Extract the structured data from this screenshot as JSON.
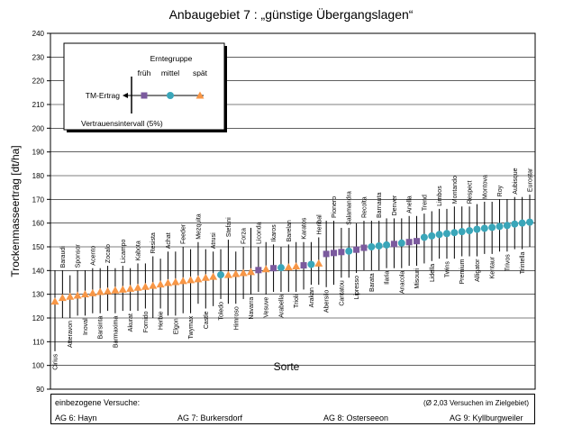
{
  "chart_data": {
    "type": "scatter",
    "title": "Anbaugebiet 7 : „günstige Übergangslagen“",
    "ylabel": "Trockenmasseertrag [dt/ha]",
    "xlabel": "Sorte",
    "ylim": [
      90,
      240
    ],
    "yticks": [
      90,
      100,
      110,
      120,
      130,
      140,
      150,
      160,
      170,
      180,
      190,
      200,
      210,
      220,
      230,
      240
    ],
    "grid": "horizontal",
    "groups": {
      "fruh": "früh",
      "mittel": "mittel",
      "spat": "spät"
    },
    "colors": {
      "fruh": "#7b5a9e",
      "mittel": "#3aa6b9",
      "spat": "#f79646"
    },
    "points": [
      {
        "name": "Cirius",
        "group": "spat",
        "y": 127,
        "low": 106,
        "high": 140
      },
      {
        "name": "Baraudi",
        "group": "spat",
        "y": 128.5,
        "low": 120,
        "high": 140
      },
      {
        "name": "Atteravon",
        "group": "spat",
        "y": 129,
        "low": 120,
        "high": 138
      },
      {
        "name": "Sponsor",
        "group": "spat",
        "y": 129.5,
        "low": 121,
        "high": 140
      },
      {
        "name": "Inoval",
        "group": "spat",
        "y": 130,
        "low": 121,
        "high": 140
      },
      {
        "name": "Acento",
        "group": "spat",
        "y": 130.5,
        "low": 122,
        "high": 141
      },
      {
        "name": "Barsinta",
        "group": "spat",
        "y": 131,
        "low": 122,
        "high": 141
      },
      {
        "name": "Zocalo",
        "group": "spat",
        "y": 131.3,
        "low": 123,
        "high": 142
      },
      {
        "name": "Barmaxima",
        "group": "spat",
        "y": 131.7,
        "low": 122,
        "high": 141
      },
      {
        "name": "Licampo",
        "group": "spat",
        "y": 132,
        "low": 123,
        "high": 142
      },
      {
        "name": "Akurat",
        "group": "spat",
        "y": 132.4,
        "low": 123,
        "high": 141
      },
      {
        "name": "Kabota",
        "group": "spat",
        "y": 132.8,
        "low": 123,
        "high": 143
      },
      {
        "name": "Fornido",
        "group": "spat",
        "y": 133.2,
        "low": 124,
        "high": 143
      },
      {
        "name": "Resista",
        "group": "spat",
        "y": 133.6,
        "low": 120,
        "high": 146
      },
      {
        "name": "Herbie",
        "group": "spat",
        "y": 134.2,
        "low": 124,
        "high": 145
      },
      {
        "name": "Achat",
        "group": "spat",
        "y": 134.8,
        "low": 121,
        "high": 148
      },
      {
        "name": "Elgon",
        "group": "spat",
        "y": 135.2,
        "low": 121,
        "high": 148
      },
      {
        "name": "Feeder",
        "group": "spat",
        "y": 135.6,
        "low": 122,
        "high": 150
      },
      {
        "name": "Twymax",
        "group": "spat",
        "y": 136,
        "low": 122,
        "high": 149
      },
      {
        "name": "Mezquita",
        "group": "spat",
        "y": 136.4,
        "low": 126,
        "high": 152
      },
      {
        "name": "Castle",
        "group": "spat",
        "y": 137,
        "low": 124,
        "high": 149
      },
      {
        "name": "Atrusi",
        "group": "spat",
        "y": 137.4,
        "low": 125,
        "high": 148
      },
      {
        "name": "Toledo",
        "group": "mittel",
        "y": 138.2,
        "low": 128,
        "high": 149
      },
      {
        "name": "Stefani",
        "group": "spat",
        "y": 138.2,
        "low": 126,
        "high": 153
      },
      {
        "name": "Himroso",
        "group": "spat",
        "y": 138.6,
        "low": 126,
        "high": 148
      },
      {
        "name": "Forza",
        "group": "spat",
        "y": 139,
        "low": 128,
        "high": 150
      },
      {
        "name": "Navarra",
        "group": "spat",
        "y": 139.4,
        "low": 130,
        "high": 158
      },
      {
        "name": "Liconda",
        "group": "fruh",
        "y": 140.2,
        "low": 131,
        "high": 150
      },
      {
        "name": "Vesuve",
        "group": "spat",
        "y": 140.6,
        "low": 130,
        "high": 152
      },
      {
        "name": "Ikaros",
        "group": "fruh",
        "y": 141,
        "low": 131,
        "high": 151
      },
      {
        "name": "Arabella",
        "group": "mittel",
        "y": 141.2,
        "low": 131,
        "high": 150
      },
      {
        "name": "Barelan",
        "group": "spat",
        "y": 141.4,
        "low": 131,
        "high": 151
      },
      {
        "name": "Trioli",
        "group": "spat",
        "y": 141.8,
        "low": 131,
        "high": 152
      },
      {
        "name": "Karatos",
        "group": "fruh",
        "y": 142.2,
        "low": 132,
        "high": 152
      },
      {
        "name": "Arakan",
        "group": "mittel",
        "y": 142.6,
        "low": 134,
        "high": 152
      },
      {
        "name": "Heribal",
        "group": "spat",
        "y": 143,
        "low": 134,
        "high": 154
      },
      {
        "name": "Abersilo",
        "group": "fruh",
        "y": 147,
        "low": 133,
        "high": 161
      },
      {
        "name": "Pionero",
        "group": "fruh",
        "y": 147.4,
        "low": 134,
        "high": 161
      },
      {
        "name": "Cantatou",
        "group": "fruh",
        "y": 147.8,
        "low": 137,
        "high": 158
      },
      {
        "name": "Salamandra",
        "group": "mittel",
        "y": 148.2,
        "low": 137,
        "high": 158
      },
      {
        "name": "Lipresso",
        "group": "fruh",
        "y": 148.8,
        "low": 139,
        "high": 160
      },
      {
        "name": "Recolta",
        "group": "fruh",
        "y": 149.6,
        "low": 140,
        "high": 161
      },
      {
        "name": "Barata",
        "group": "mittel",
        "y": 150,
        "low": 140,
        "high": 161
      },
      {
        "name": "Barnauta",
        "group": "mittel",
        "y": 150.4,
        "low": 140,
        "high": 161
      },
      {
        "name": "Ilaria",
        "group": "mittel",
        "y": 150.8,
        "low": 141,
        "high": 162
      },
      {
        "name": "Denver",
        "group": "fruh",
        "y": 151.2,
        "low": 141,
        "high": 162
      },
      {
        "name": "Anacola",
        "group": "mittel",
        "y": 151.6,
        "low": 141,
        "high": 162
      },
      {
        "name": "Anella",
        "group": "fruh",
        "y": 152,
        "low": 142,
        "high": 163
      },
      {
        "name": "Misouri",
        "group": "fruh",
        "y": 152.4,
        "low": 142,
        "high": 163
      },
      {
        "name": "Trend",
        "group": "mittel",
        "y": 154,
        "low": 143,
        "high": 164
      },
      {
        "name": "Lidella",
        "group": "mittel",
        "y": 154.6,
        "low": 144,
        "high": 165
      },
      {
        "name": "Limbos",
        "group": "mittel",
        "y": 155.2,
        "low": 145,
        "high": 166
      },
      {
        "name": "Twins",
        "group": "mittel",
        "y": 155.6,
        "low": 145,
        "high": 166
      },
      {
        "name": "Montando",
        "group": "mittel",
        "y": 156,
        "low": 145,
        "high": 167
      },
      {
        "name": "Premium",
        "group": "mittel",
        "y": 156.4,
        "low": 146,
        "high": 167
      },
      {
        "name": "Respect",
        "group": "mittel",
        "y": 156.8,
        "low": 146,
        "high": 167
      },
      {
        "name": "Alligator",
        "group": "mittel",
        "y": 157.4,
        "low": 146,
        "high": 168
      },
      {
        "name": "Montova",
        "group": "mittel",
        "y": 157.8,
        "low": 147,
        "high": 169
      },
      {
        "name": "Kentaur",
        "group": "mittel",
        "y": 158.2,
        "low": 147,
        "high": 169
      },
      {
        "name": "Roy",
        "group": "mittel",
        "y": 158.6,
        "low": 148,
        "high": 170
      },
      {
        "name": "Trivos",
        "group": "mittel",
        "y": 159,
        "low": 148,
        "high": 170
      },
      {
        "name": "Aubisque",
        "group": "mittel",
        "y": 159.6,
        "low": 149,
        "high": 171
      },
      {
        "name": "Trintella",
        "group": "mittel",
        "y": 160,
        "low": 149,
        "high": 171
      },
      {
        "name": "Eurostar",
        "group": "mittel",
        "y": 160.4,
        "low": 150,
        "high": 172
      }
    ]
  },
  "legend": {
    "title": "Erntegruppe",
    "groups": [
      "früh",
      "mittel",
      "spät"
    ],
    "tm_label": "TM-Ertrag",
    "ci_label": "Vertrauensintervall (5%)"
  },
  "footer": {
    "heading": "einbezogene Versuche:",
    "note": "(Ø 2,03 Versuchen im Zielgebiet)",
    "sites": [
      "AG 6:  Hayn",
      "AG 7: Burkersdorf",
      "AG 8:  Osterseeon",
      "AG 9:  Kyllburgweiler"
    ]
  }
}
